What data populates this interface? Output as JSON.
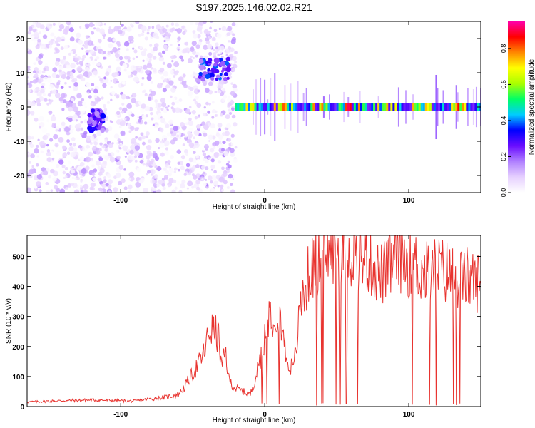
{
  "page_title": "S197.2025.146.02.02.R21",
  "chart_data": [
    {
      "type": "heatmap",
      "xlabel": "Height of straight line (km)",
      "ylabel": "Frequency (Hz)",
      "xlim": [
        -165,
        150
      ],
      "ylim": [
        -25,
        25
      ],
      "x_ticks": [
        -100,
        0,
        100
      ],
      "x_tick_labels": [
        "-100",
        "0",
        "100"
      ],
      "y_ticks": [
        -20,
        -10,
        0,
        10,
        20
      ],
      "y_tick_labels": [
        "-20",
        "-10",
        "0",
        "10",
        "20"
      ],
      "colorbar": {
        "label": "Normalized spectral amplitude",
        "range": [
          0,
          0.95
        ],
        "ticks": [
          0,
          0.2,
          0.4,
          0.6,
          0.8
        ],
        "tick_labels": [
          "0.0",
          "0.2",
          "0.4",
          "0.6",
          "0.8"
        ],
        "colormap": [
          "#ffffff",
          "#e6d0ff",
          "#b080ff",
          "#6a0dff",
          "#0000ff",
          "#00ccff",
          "#00ff66",
          "#aaff00",
          "#ffff00",
          "#ff8800",
          "#ff0000",
          "#ff00aa"
        ]
      },
      "features": [
        {
          "name": "noise background",
          "x_range": [
            -165,
            -20
          ],
          "freq_range": [
            -25,
            25
          ],
          "amplitude": 0.15
        },
        {
          "name": "cluster",
          "x_range": [
            -122,
            -112
          ],
          "freq_center": -4,
          "amplitude": 0.35
        },
        {
          "name": "cluster",
          "x_range": [
            -45,
            -25
          ],
          "freq_center": 11,
          "amplitude": 0.4
        },
        {
          "name": "carrier line",
          "x_range": [
            -20,
            150
          ],
          "freq_center": 0,
          "amplitude": 0.95
        }
      ]
    },
    {
      "type": "line",
      "xlabel": "Height of straight line (km)",
      "ylabel": "SNR (10 * v/v)",
      "xlim": [
        -165,
        150
      ],
      "ylim": [
        0,
        570
      ],
      "x_ticks": [
        -100,
        0,
        100
      ],
      "x_tick_labels": [
        "-100",
        "0",
        "100"
      ],
      "y_ticks": [
        0,
        100,
        200,
        300,
        400,
        500
      ],
      "y_tick_labels": [
        "0",
        "100",
        "200",
        "300",
        "400",
        "500"
      ],
      "color": "#e8332f",
      "series": [
        {
          "x": [
            -165,
            -150,
            -135,
            -120,
            -105,
            -90,
            -80,
            -70,
            -60,
            -55,
            -50,
            -45,
            -42,
            -38,
            -35,
            -32,
            -30,
            -27,
            -25,
            -22,
            -20,
            -15,
            -10,
            -5,
            0,
            3,
            6,
            10,
            15,
            20,
            25,
            30,
            35,
            40,
            45,
            50,
            55,
            60,
            65,
            70,
            75,
            80,
            85,
            90,
            95,
            100,
            105,
            110,
            115,
            120,
            125,
            130,
            135,
            140,
            145,
            150
          ],
          "y": [
            15,
            18,
            20,
            22,
            20,
            18,
            25,
            30,
            40,
            70,
            110,
            150,
            180,
            260,
            250,
            230,
            130,
            180,
            90,
            70,
            60,
            50,
            40,
            120,
            240,
            320,
            300,
            330,
            160,
            120,
            340,
            430,
            480,
            500,
            520,
            510,
            530,
            520,
            510,
            500,
            470,
            440,
            450,
            490,
            500,
            480,
            470,
            440,
            450,
            460,
            450,
            440,
            420,
            430,
            420,
            410
          ]
        }
      ]
    }
  ]
}
